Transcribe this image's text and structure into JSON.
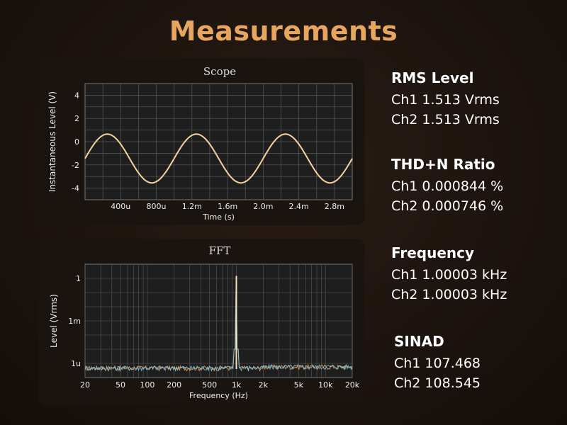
{
  "page_title": "Measurements",
  "scope": {
    "title": "Scope",
    "ylabel": "Instantaneous Level (V)",
    "xlabel": "Time (s)",
    "ytick_labels": [
      "4",
      "2",
      "0",
      "-2",
      "-4"
    ],
    "xtick_labels": [
      "400u",
      "800u",
      "1.2m",
      "1.6m",
      "2.0m",
      "2.4m",
      "2.8m"
    ]
  },
  "fft": {
    "title": "FFT",
    "ylabel": "Level  (Vrms)",
    "xlabel": "Frequency (Hz)",
    "ytick_labels": [
      "1",
      "1m",
      "1u"
    ],
    "xtick_labels": [
      "20",
      "50",
      "100",
      "200",
      "500",
      "1k",
      "2k",
      "5k",
      "10k",
      "20k"
    ]
  },
  "measurements": [
    {
      "label": "RMS Level",
      "ch1": "Ch1 1.513 Vrms",
      "ch2": "Ch2 1.513 Vrms"
    },
    {
      "label": "THD+N Ratio",
      "ch1": "Ch1 0.000844 %",
      "ch2": "Ch2 0.000746 %"
    },
    {
      "label": "Frequency",
      "ch1": "Ch1 1.00003 kHz",
      "ch2": "Ch2 1.00003 kHz"
    },
    {
      "label": "SINAD",
      "ch1": "Ch1 107.468",
      "ch2": "Ch2 108.545"
    }
  ],
  "colors": {
    "title": "#e7a65f",
    "trace_ch1": "#f5d3a0",
    "trace_ch2": "#7ec8e3",
    "fft_ch1": "#e8a25a",
    "plot_bg": "#1e1e1e",
    "grid": "#5a5a5a"
  },
  "chart_data": [
    {
      "type": "line",
      "title": "Scope",
      "xlabel": "Time (s)",
      "ylabel": "Instantaneous Level (V)",
      "xlim": [
        0,
        0.003
      ],
      "ylim": [
        -5,
        5
      ],
      "grid": true,
      "series": [
        {
          "x": [
            0,
            0.0001,
            0.0002,
            0.0003,
            0.0004,
            0.0005,
            0.0006,
            0.0007,
            0.0008,
            0.0009,
            0.001,
            0.0011,
            0.0012,
            0.0013,
            0.0014,
            0.0015,
            0.0016,
            0.0017,
            0.0018,
            0.0019,
            0.002,
            0.0021,
            0.0022,
            0.0023,
            0.0024,
            0.0025,
            0.0026,
            0.0027,
            0.0028,
            0.0029,
            0.003
          ],
          "y": [
            -1.5,
            -0.3,
            0.6,
            0.4,
            -0.8,
            -2.3,
            -3.3,
            -3.5,
            -2.8,
            -1.5,
            -0.3,
            0.6,
            0.4,
            -0.8,
            -2.3,
            -3.3,
            -3.5,
            -2.8,
            -1.5,
            -0.3,
            0.6,
            0.4,
            -0.8,
            -2.3,
            -3.3,
            -3.5,
            -2.8,
            -1.5,
            -0.3,
            0.6,
            0.4
          ]
        }
      ]
    },
    {
      "type": "line",
      "title": "FFT",
      "xlabel": "Frequency (Hz)",
      "ylabel": "Level  (Vrms)",
      "x_scale": "log",
      "y_scale": "log",
      "xlim": [
        20,
        20000
      ],
      "ylim": [
        1e-07,
        10
      ],
      "grid": true,
      "series": [
        {
          "x": [
            20,
            30,
            40,
            50,
            70,
            100,
            150,
            200,
            300,
            500,
            700,
            900,
            1000,
            1100,
            1500,
            2000,
            3000,
            5000,
            7000,
            10000,
            15000,
            20000
          ],
          "y": [
            3e-07,
            5e-07,
            2e-07,
            4e-07,
            3e-07,
            4e-07,
            3e-07,
            4e-07,
            3e-07,
            3e-07,
            4e-07,
            1e-06,
            1.5,
            1e-06,
            4e-07,
            4e-07,
            8e-07,
            4e-07,
            5e-07,
            4e-07,
            5e-07,
            4e-07
          ]
        },
        {
          "x": [
            20,
            30,
            40,
            50,
            70,
            100,
            150,
            200,
            300,
            500,
            700,
            900,
            1000,
            1100,
            1500,
            2000,
            3000,
            5000,
            7000,
            10000,
            15000,
            20000
          ],
          "y": [
            4e-07,
            3e-07,
            5e-07,
            3e-07,
            4e-07,
            3e-07,
            4e-07,
            3e-07,
            4e-07,
            4e-07,
            3e-07,
            1e-06,
            1.5,
            1e-06,
            3e-07,
            5e-07,
            7e-07,
            5e-07,
            4e-07,
            5e-07,
            4e-07,
            5e-07
          ]
        }
      ]
    }
  ]
}
